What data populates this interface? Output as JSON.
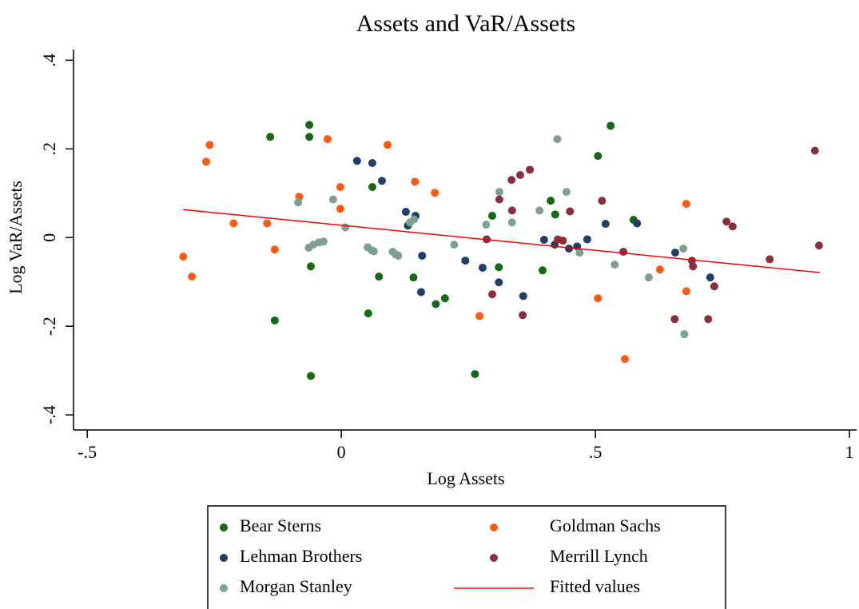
{
  "chart_data": {
    "type": "scatter",
    "title": "Assets and VaR/Assets",
    "xlabel": "Log Assets",
    "ylabel": "Log VaR/Assets",
    "xlim": [
      -0.527,
      1.014
    ],
    "ylim": [
      -0.434,
      0.424
    ],
    "xticks": [
      {
        "value": -0.5,
        "label": "-.5"
      },
      0,
      {
        "value": 0.5,
        "label": ".5"
      },
      1
    ],
    "yticks": [
      {
        "value": -0.4,
        "label": "-.4"
      },
      {
        "value": -0.2,
        "label": "-.2"
      },
      0,
      {
        "value": 0.2,
        "label": ".2"
      },
      {
        "value": 0.4,
        "label": ".4"
      }
    ],
    "series": [
      {
        "name": "Bear Sterns",
        "color": "#156b15",
        "x": [
          -0.14,
          -0.063,
          -0.063,
          -0.131,
          -0.06,
          -0.06,
          0.053,
          0.061,
          0.074,
          0.142,
          0.186,
          0.204,
          0.263,
          0.31,
          0.297,
          0.396,
          0.412,
          0.421,
          0.505,
          0.53,
          0.575
        ],
        "values": [
          0.227,
          0.254,
          0.227,
          -0.187,
          -0.065,
          -0.312,
          -0.171,
          0.114,
          -0.088,
          -0.09,
          -0.15,
          -0.137,
          -0.308,
          -0.067,
          0.049,
          -0.074,
          0.083,
          0.052,
          0.184,
          0.252,
          0.04
        ]
      },
      {
        "name": "Goldman Sachs",
        "color": "#ff5a10",
        "x": [
          -0.311,
          -0.294,
          -0.266,
          -0.259,
          -0.212,
          -0.146,
          -0.131,
          -0.083,
          -0.002,
          -0.002,
          -0.027,
          0.091,
          0.145,
          0.184,
          0.272,
          0.505,
          0.558,
          0.627,
          0.679,
          0.679
        ],
        "values": [
          -0.043,
          -0.088,
          0.171,
          0.209,
          0.032,
          0.032,
          -0.027,
          0.092,
          0.065,
          0.114,
          0.222,
          0.209,
          0.126,
          0.101,
          -0.177,
          -0.137,
          -0.274,
          -0.072,
          0.076,
          -0.121
        ]
      },
      {
        "name": "Lehman Brothers",
        "color": "#1f3e68",
        "x": [
          0.031,
          0.061,
          0.08,
          0.127,
          0.146,
          0.131,
          0.159,
          0.157,
          0.244,
          0.278,
          0.31,
          0.358,
          0.399,
          0.42,
          0.448,
          0.464,
          0.484,
          0.52,
          0.582,
          0.657,
          0.726
        ],
        "values": [
          0.173,
          0.168,
          0.128,
          0.058,
          0.049,
          0.027,
          -0.041,
          -0.123,
          -0.052,
          -0.068,
          -0.101,
          -0.132,
          -0.005,
          -0.016,
          -0.025,
          -0.02,
          -0.004,
          0.031,
          0.032,
          -0.034,
          -0.09
        ]
      },
      {
        "name": "Merrill Lynch",
        "color": "#8c2e3c",
        "x": [
          0.286,
          0.297,
          0.311,
          0.335,
          0.336,
          0.352,
          0.371,
          0.357,
          0.426,
          0.436,
          0.45,
          0.513,
          0.555,
          0.656,
          0.69,
          0.692,
          0.722,
          0.734,
          0.758,
          0.77,
          0.843,
          0.932,
          0.94
        ],
        "values": [
          -0.004,
          -0.128,
          0.086,
          0.13,
          0.061,
          0.141,
          0.153,
          -0.175,
          -0.004,
          -0.007,
          0.059,
          0.083,
          -0.032,
          -0.184,
          -0.052,
          -0.065,
          -0.184,
          -0.11,
          0.036,
          0.025,
          -0.049,
          0.196,
          -0.018
        ]
      },
      {
        "name": "Morgan Stanley",
        "color": "#7f9f92",
        "x": [
          -0.085,
          -0.016,
          0.008,
          -0.064,
          -0.055,
          -0.044,
          -0.035,
          0.052,
          0.06,
          0.064,
          0.101,
          0.107,
          0.112,
          0.135,
          0.143,
          0.222,
          0.285,
          0.311,
          0.336,
          0.39,
          0.425,
          0.443,
          0.469,
          0.538,
          0.605,
          0.673,
          0.675
        ],
        "values": [
          0.079,
          0.086,
          0.023,
          -0.023,
          -0.016,
          -0.011,
          -0.009,
          -0.022,
          -0.029,
          -0.031,
          -0.032,
          -0.038,
          -0.041,
          0.034,
          0.041,
          -0.016,
          0.029,
          0.103,
          0.034,
          0.061,
          0.222,
          0.103,
          -0.034,
          -0.061,
          -0.09,
          -0.025,
          -0.218
        ]
      },
      {
        "name": "Fitted values",
        "color": "#ff0000",
        "type": "line",
        "x": [
          -0.311,
          0.942
        ],
        "values": [
          0.063,
          -0.079
        ]
      }
    ]
  }
}
